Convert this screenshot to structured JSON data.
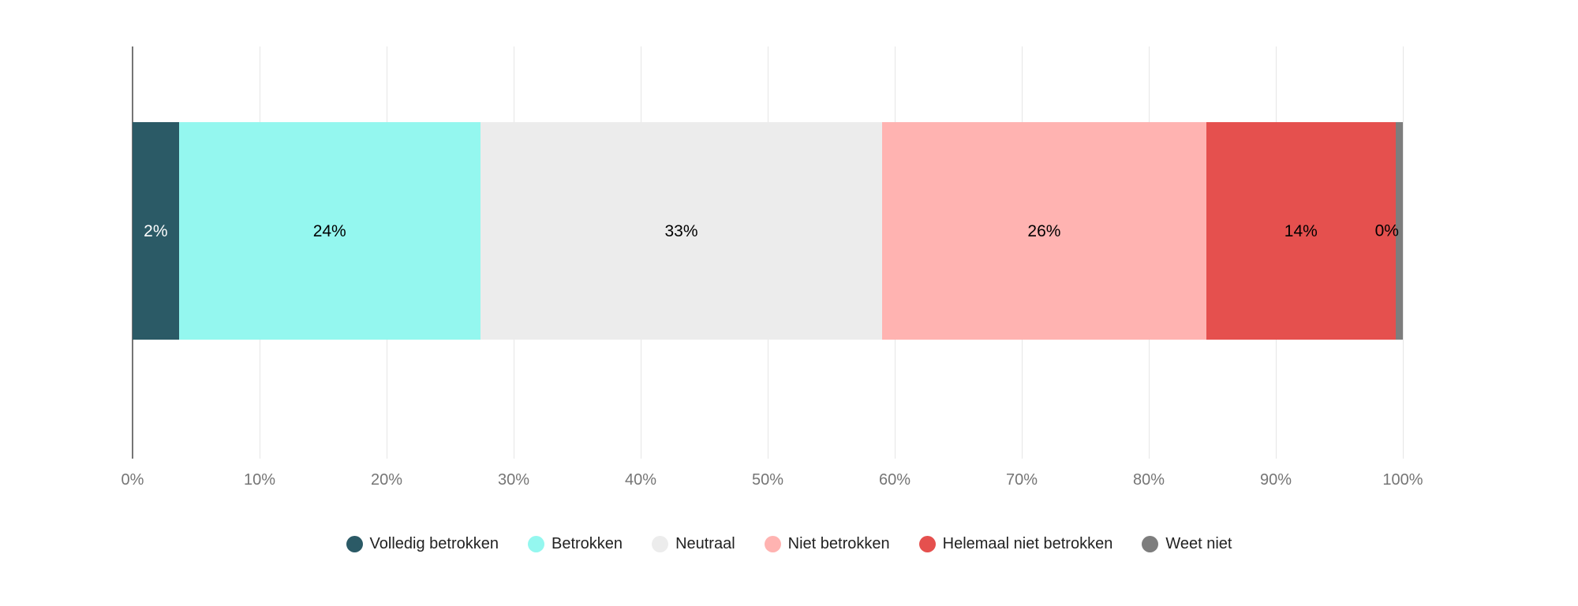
{
  "chart_data": {
    "type": "bar",
    "orientation": "horizontal",
    "stacked": true,
    "series": [
      {
        "name": "Volledig betrokken",
        "value": 2,
        "label": "2%",
        "color": "#2b5a66",
        "label_color": "#ffffff"
      },
      {
        "name": "Betrokken",
        "value": 24,
        "label": "24%",
        "color": "#94f7ef",
        "label_color": "#000000"
      },
      {
        "name": "Neutraal",
        "value": 33,
        "label": "33%",
        "color": "#ececec",
        "label_color": "#000000"
      },
      {
        "name": "Niet betrokken",
        "value": 26,
        "label": "26%",
        "color": "#ffb3b1",
        "label_color": "#000000"
      },
      {
        "name": "Helemaal niet betrokken",
        "value": 14,
        "label": "14%",
        "color": "#e5504e",
        "label_color": "#000000"
      },
      {
        "name": "Weet niet",
        "value": 0,
        "label": "0%",
        "color": "#7d7d7d",
        "label_color": "#000000"
      }
    ],
    "x_ticks": [
      "0%",
      "10%",
      "20%",
      "30%",
      "40%",
      "50%",
      "60%",
      "70%",
      "80%",
      "90%",
      "100%"
    ],
    "xlim": [
      0,
      100
    ],
    "grid": true,
    "legend_position": "bottom",
    "title": ""
  },
  "colors": {
    "gridline": "#e6e6e6",
    "axis_line": "#757575",
    "tick_label": "#757575",
    "legend_text": "#222222",
    "background": "#ffffff"
  }
}
